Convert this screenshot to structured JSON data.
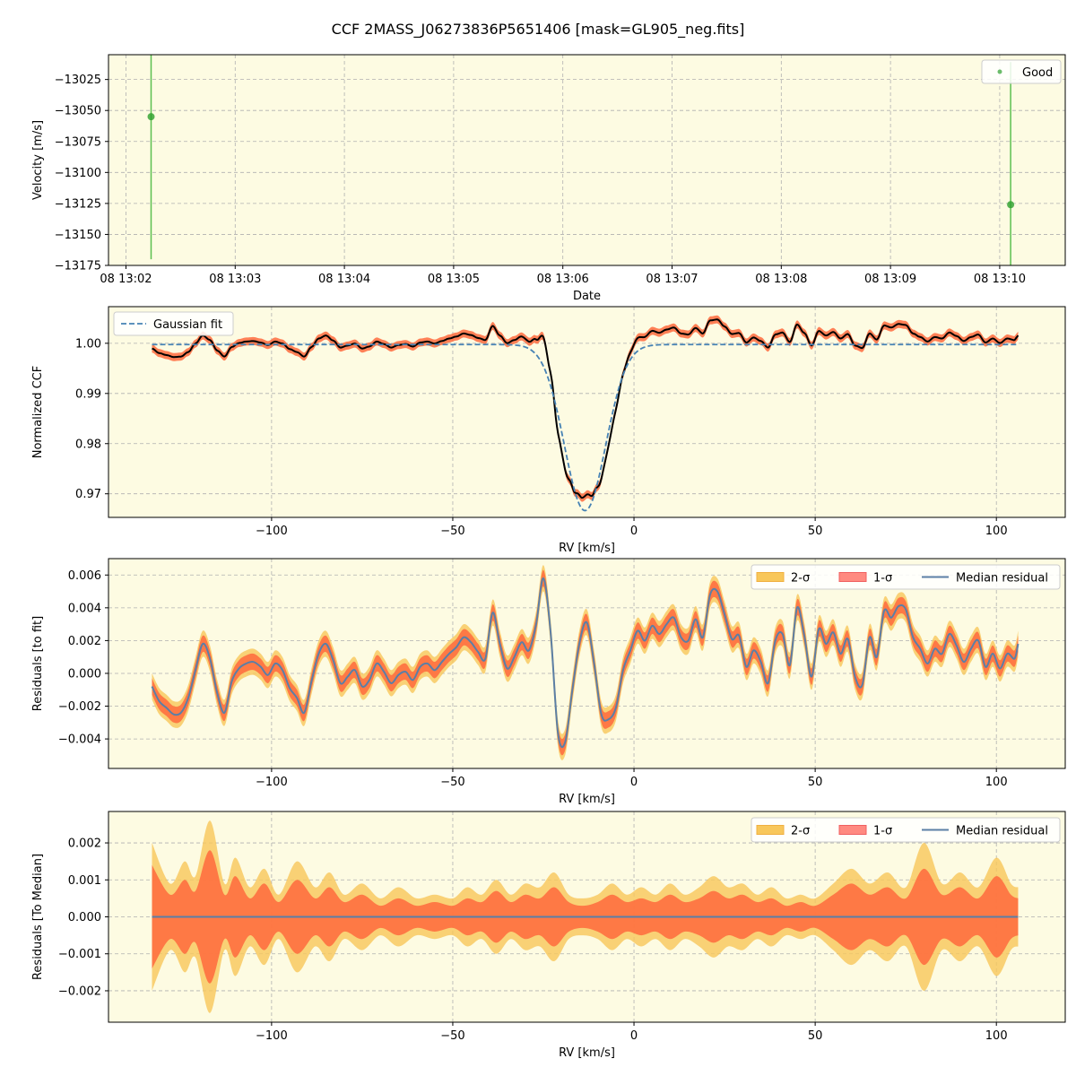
{
  "chart_data": {
    "title": "CCF 2MASS_J06273836P5651406 [mask=GL905_neg.fits]",
    "colors": {
      "background": "#fdfbe2",
      "good": "#2ca02c",
      "good_bar": "#5cbf4f",
      "gauss": "#4682b4",
      "ccf": "#000000",
      "band_1sigma": "#ff6a3d",
      "band_2sigma": "#f8c75a",
      "median": "#5b7fa6",
      "grid": "#b0b0b0"
    },
    "panels": [
      {
        "type": "scatter",
        "ylabel": "Velocity [m/s]",
        "xlabel": "Date",
        "xlim": [
          -0.16,
          8.6
        ],
        "ylim": [
          -13175,
          -13005
        ],
        "xticks": [
          0,
          1,
          2,
          3,
          4,
          5,
          6,
          7,
          8
        ],
        "xticklabels": [
          "08 13:02",
          "08 13:03",
          "08 13:04",
          "08 13:05",
          "08 13:06",
          "08 13:07",
          "08 13:08",
          "08 13:09",
          "08 13:10"
        ],
        "yticks": [
          -13175,
          -13150,
          -13125,
          -13100,
          -13075,
          -13050,
          -13025
        ],
        "yticklabels": [
          "−13175",
          "−13150",
          "−13125",
          "−13100",
          "−13075",
          "−13050",
          "−13025"
        ],
        "legend": [
          "Good"
        ],
        "legend_loc": "upper right",
        "points": [
          {
            "x": 0.23,
            "y": -13055,
            "err": 115
          },
          {
            "x": 8.1,
            "y": -13126,
            "err": 115
          }
        ]
      },
      {
        "type": "line",
        "ylabel": "Normalized CCF",
        "xlabel": "RV [km/s]",
        "xlim": [
          -145,
          119
        ],
        "ylim": [
          0.9653,
          1.0073
        ],
        "xticks": [
          -100,
          -50,
          0,
          50,
          100
        ],
        "xticklabels": [
          "−100",
          "−50",
          "0",
          "50",
          "100"
        ],
        "yticks": [
          0.97,
          0.98,
          0.99,
          1.0
        ],
        "yticklabels": [
          "0.97",
          "0.98",
          "0.99",
          "1.00"
        ],
        "legend": [
          "Gaussian fit"
        ],
        "legend_loc": "upper left",
        "gauss": {
          "continuum": 0.99975,
          "depth": 0.0331,
          "center": -13.5,
          "sigma": 5.7
        },
        "rv_range": [
          -133,
          106
        ]
      },
      {
        "type": "line",
        "ylabel": "Residuals [to fit]",
        "xlabel": "RV [km/s]",
        "xlim": [
          -145,
          119
        ],
        "ylim": [
          -0.0058,
          0.007
        ],
        "xticks": [
          -100,
          -50,
          0,
          50,
          100
        ],
        "xticklabels": [
          "−100",
          "−50",
          "0",
          "50",
          "100"
        ],
        "yticks": [
          -0.004,
          -0.002,
          0.0,
          0.002,
          0.004,
          0.006
        ],
        "yticklabels": [
          "−0.004",
          "−0.002",
          "0.000",
          "0.002",
          "0.004",
          "0.006"
        ],
        "legend": [
          "2-σ",
          "1-σ",
          "Median residual"
        ],
        "legend_loc": "upper right",
        "median_residual": {
          "rv": [
            -133,
            -131,
            -129,
            -127,
            -125,
            -123,
            -121,
            -119,
            -117,
            -115,
            -113,
            -111,
            -109,
            -107,
            -105,
            -103,
            -101,
            -99,
            -97,
            -95,
            -93,
            -91,
            -89,
            -87,
            -85,
            -83,
            -81,
            -79,
            -77,
            -75,
            -73,
            -71,
            -69,
            -67,
            -65,
            -63,
            -61,
            -59,
            -57,
            -55,
            -53,
            -51,
            -49,
            -47,
            -45,
            -43,
            -41,
            -39,
            -37,
            -35,
            -33,
            -31,
            -29,
            -27,
            -25,
            -23,
            -21,
            -19,
            -17,
            -15,
            -13,
            -11,
            -9,
            -7,
            -5,
            -3,
            -1,
            1,
            3,
            5,
            7,
            9,
            11,
            13,
            15,
            17,
            19,
            21,
            23,
            25,
            27,
            29,
            31,
            33,
            35,
            37,
            39,
            41,
            43,
            45,
            47,
            49,
            51,
            53,
            55,
            57,
            59,
            61,
            63,
            65,
            67,
            69,
            71,
            73,
            75,
            77,
            79,
            81,
            83,
            85,
            87,
            89,
            91,
            93,
            95,
            97,
            99,
            101,
            103,
            105,
            106
          ],
          "values": [
            -0.0008,
            -0.0017,
            -0.0021,
            -0.0025,
            -0.0024,
            -0.0015,
            0.0002,
            0.0018,
            0.0009,
            -0.0012,
            -0.0024,
            -0.0005,
            0.0003,
            0.0006,
            0.0007,
            0.0004,
            -0.0001,
            0.0006,
            0.0002,
            -0.0009,
            -0.0015,
            -0.0024,
            -0.0005,
            0.0012,
            0.0018,
            0.0008,
            -0.0006,
            -0.0002,
            0.0002,
            -0.0008,
            -0.0004,
            0.0006,
            0.0001,
            -0.0006,
            -0.0001,
            0.0001,
            -0.0004,
            0.0004,
            0.0006,
            0.0002,
            0.0007,
            0.0012,
            0.0016,
            0.0022,
            0.0019,
            0.0013,
            0.0009,
            0.0037,
            0.0018,
            0.0003,
            0.001,
            0.0019,
            0.0014,
            0.003,
            0.0058,
            0.0025,
            -0.0036,
            -0.0042,
            -0.001,
            0.0019,
            0.0031,
            0.0006,
            -0.0025,
            -0.0028,
            -0.0021,
            0.0002,
            0.0014,
            0.0026,
            0.002,
            0.0029,
            0.0024,
            0.003,
            0.0034,
            0.0022,
            0.002,
            0.0033,
            0.0022,
            0.0048,
            0.005,
            0.0036,
            0.0021,
            0.0023,
            0.0004,
            0.0014,
            0.0007,
            -0.0006,
            0.002,
            0.0024,
            0.0005,
            0.004,
            0.0023,
            -0.0002,
            0.0027,
            0.0018,
            0.0025,
            0.0012,
            0.0021,
            -0.0002,
            -0.0007,
            0.0022,
            0.001,
            0.0038,
            0.0034,
            0.0041,
            0.0039,
            0.0022,
            0.0015,
            0.0006,
            0.0015,
            0.0012,
            0.0024,
            0.0017,
            0.0007,
            0.0015,
            0.002,
            0.0004,
            0.0012,
            0.0003,
            0.0012,
            0.0009,
            0.0018
          ]
        },
        "band_1sigma_halfwidth": 0.0005,
        "band_2sigma_halfwidth": 0.0008
      },
      {
        "type": "line",
        "ylabel": "Residuals [To Median]",
        "xlabel": "RV [km/s]",
        "xlim": [
          -145,
          119
        ],
        "ylim": [
          -0.00285,
          0.00285
        ],
        "xticks": [
          -100,
          -50,
          0,
          50,
          100
        ],
        "xticklabels": [
          "−100",
          "−50",
          "0",
          "50",
          "100"
        ],
        "yticks": [
          -0.002,
          -0.001,
          0.0,
          0.001,
          0.002
        ],
        "yticklabels": [
          "−0.002",
          "−0.001",
          "0.000",
          "0.001",
          "0.002"
        ],
        "legend": [
          "2-σ",
          "1-σ",
          "Median residual"
        ],
        "legend_loc": "upper right",
        "median_value": 0.0,
        "band_envelope": {
          "rv": [
            -133,
            -128,
            -124,
            -121,
            -117,
            -113,
            -110,
            -106,
            -102,
            -98,
            -93,
            -88,
            -84,
            -80,
            -75,
            -70,
            -65,
            -60,
            -55,
            -50,
            -46,
            -42,
            -38,
            -34,
            -30,
            -26,
            -22,
            -18,
            -14,
            -10,
            -6,
            -2,
            2,
            6,
            10,
            14,
            18,
            22,
            26,
            30,
            34,
            38,
            42,
            46,
            50,
            55,
            60,
            65,
            70,
            75,
            80,
            85,
            90,
            95,
            100,
            104,
            106
          ],
          "sigma1": [
            0.0014,
            0.0006,
            0.001,
            0.0007,
            0.0018,
            0.0006,
            0.0011,
            0.0005,
            0.0009,
            0.0004,
            0.001,
            0.0005,
            0.0008,
            0.0004,
            0.0006,
            0.0003,
            0.0005,
            0.0003,
            0.0004,
            0.0003,
            0.0005,
            0.0004,
            0.0007,
            0.0004,
            0.0006,
            0.0005,
            0.0008,
            0.0004,
            0.0003,
            0.0004,
            0.0006,
            0.0004,
            0.0005,
            0.0004,
            0.0006,
            0.0004,
            0.0005,
            0.0007,
            0.0005,
            0.0006,
            0.0004,
            0.0005,
            0.0003,
            0.0004,
            0.0003,
            0.0006,
            0.0009,
            0.0006,
            0.0008,
            0.0005,
            0.0013,
            0.0006,
            0.0008,
            0.0005,
            0.0011,
            0.0006,
            0.0005
          ],
          "sigma2": [
            0.002,
            0.0009,
            0.0015,
            0.0011,
            0.0026,
            0.0009,
            0.0016,
            0.0008,
            0.0013,
            0.0006,
            0.0015,
            0.0008,
            0.0012,
            0.0006,
            0.0009,
            0.0005,
            0.0008,
            0.0005,
            0.0006,
            0.0005,
            0.0008,
            0.0006,
            0.001,
            0.0006,
            0.0009,
            0.0008,
            0.0012,
            0.0006,
            0.0005,
            0.0006,
            0.0009,
            0.0006,
            0.0008,
            0.0006,
            0.0009,
            0.0006,
            0.0008,
            0.0011,
            0.0008,
            0.0009,
            0.0006,
            0.0008,
            0.0005,
            0.0006,
            0.0005,
            0.0009,
            0.0013,
            0.0009,
            0.0012,
            0.0008,
            0.002,
            0.0009,
            0.0012,
            0.0008,
            0.0016,
            0.0009,
            0.0008
          ]
        }
      }
    ]
  }
}
